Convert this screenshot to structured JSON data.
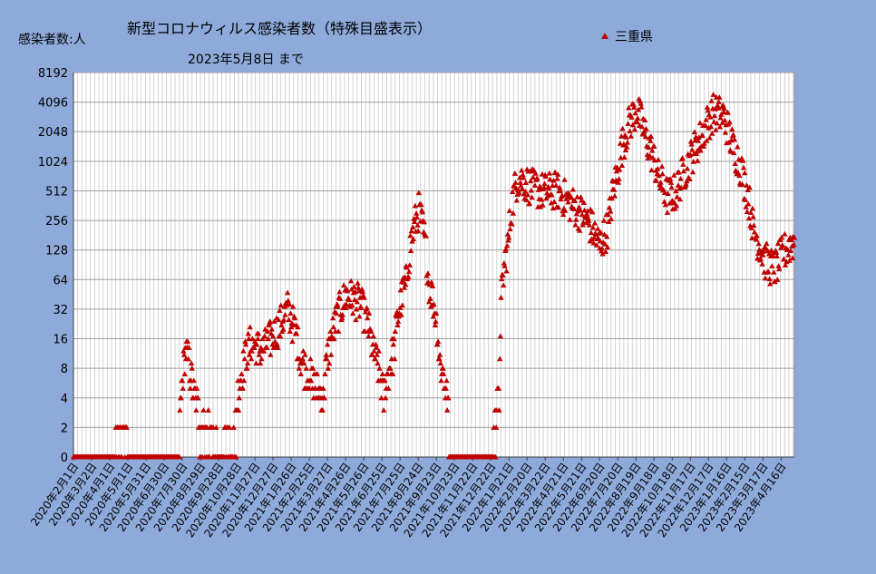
{
  "chart_data": {
    "type": "scatter",
    "title": "新型コロナウィルス感染者数（特殊目盛表示）",
    "subtitle": "2023年5月8日  まで",
    "ylabel": "感染者数:人",
    "y_scale": "log2",
    "y_ticks": [
      "0",
      "2",
      "4",
      "8",
      "16",
      "32",
      "64",
      "128",
      "256",
      "512",
      "1024",
      "2048",
      "4096",
      "8192"
    ],
    "x_tick_labels": [
      "2020年2月1日",
      "2020年3月2日",
      "2020年4月1日",
      "2020年5月1日",
      "2020年5月31日",
      "2020年6月30日",
      "2020年7月30日",
      "2020年8月29日",
      "2020年9月28日",
      "2020年10月28日",
      "2020年11月27日",
      "2020年12月27日",
      "2021年1月26日",
      "2021年2月25日",
      "2021年3月27日",
      "2021年4月26日",
      "2021年5月26日",
      "2021年6月25日",
      "2021年7月25日",
      "2021年8月24日",
      "2021年9月23日",
      "2021年10月23日",
      "2021年11月22日",
      "2021年12月22日",
      "2022年1月21日",
      "2022年2月20日",
      "2022年3月22日",
      "2022年4月21日",
      "2022年5月21日",
      "2022年6月20日",
      "2022年7月20日",
      "2022年8月19日",
      "2022年9月18日",
      "2022年10月18日",
      "2022年11月17日",
      "2022年12月17日",
      "2023年1月16日",
      "2023年2月15日",
      "2023年3月17日",
      "2023年4月16日"
    ],
    "x_range": [
      "2020-02-01",
      "2023-05-08"
    ],
    "grid": true,
    "legend": {
      "position": "top-right",
      "entries": [
        "三重県"
      ]
    },
    "series": [
      {
        "name": "三重県",
        "color": "#c00000",
        "marker": "triangle",
        "trend": [
          [
            "2020-02-01",
            0
          ],
          [
            "2020-03-20",
            0
          ],
          [
            "2020-04-05",
            1
          ],
          [
            "2020-04-25",
            2
          ],
          [
            "2020-05-10",
            0
          ],
          [
            "2020-06-30",
            0
          ],
          [
            "2020-07-25",
            1
          ],
          [
            "2020-08-05",
            12
          ],
          [
            "2020-08-18",
            4
          ],
          [
            "2020-09-05",
            2
          ],
          [
            "2020-09-28",
            1
          ],
          [
            "2020-10-25",
            2
          ],
          [
            "2020-11-20",
            14
          ],
          [
            "2020-12-10",
            12
          ],
          [
            "2021-01-05",
            20
          ],
          [
            "2021-01-20",
            32
          ],
          [
            "2021-02-10",
            10
          ],
          [
            "2021-02-28",
            6
          ],
          [
            "2021-03-20",
            4
          ],
          [
            "2021-04-05",
            18
          ],
          [
            "2021-04-28",
            45
          ],
          [
            "2021-05-20",
            36
          ],
          [
            "2021-06-10",
            12
          ],
          [
            "2021-06-28",
            4
          ],
          [
            "2021-07-15",
            12
          ],
          [
            "2021-08-05",
            60
          ],
          [
            "2021-08-25",
            320
          ],
          [
            "2021-09-10",
            60
          ],
          [
            "2021-09-28",
            10
          ],
          [
            "2021-10-15",
            2
          ],
          [
            "2021-10-30",
            0
          ],
          [
            "2021-12-20",
            0
          ],
          [
            "2022-01-05",
            4
          ],
          [
            "2022-01-20",
            150
          ],
          [
            "2022-02-05",
            700
          ],
          [
            "2022-02-28",
            550
          ],
          [
            "2022-03-20",
            500
          ],
          [
            "2022-04-10",
            520
          ],
          [
            "2022-04-25",
            420
          ],
          [
            "2022-05-10",
            350
          ],
          [
            "2022-05-30",
            260
          ],
          [
            "2022-06-20",
            140
          ],
          [
            "2022-07-05",
            220
          ],
          [
            "2022-07-20",
            800
          ],
          [
            "2022-08-05",
            2200
          ],
          [
            "2022-08-20",
            3400
          ],
          [
            "2022-09-05",
            1700
          ],
          [
            "2022-09-25",
            700
          ],
          [
            "2022-10-10",
            450
          ],
          [
            "2022-10-25",
            500
          ],
          [
            "2022-11-15",
            1000
          ],
          [
            "2022-12-05",
            1800
          ],
          [
            "2022-12-25",
            3200
          ],
          [
            "2023-01-10",
            3000
          ],
          [
            "2023-01-25",
            1500
          ],
          [
            "2023-02-15",
            600
          ],
          [
            "2023-03-01",
            200
          ],
          [
            "2023-03-20",
            100
          ],
          [
            "2023-04-05",
            80
          ],
          [
            "2023-04-20",
            120
          ],
          [
            "2023-05-08",
            160
          ]
        ]
      }
    ]
  }
}
